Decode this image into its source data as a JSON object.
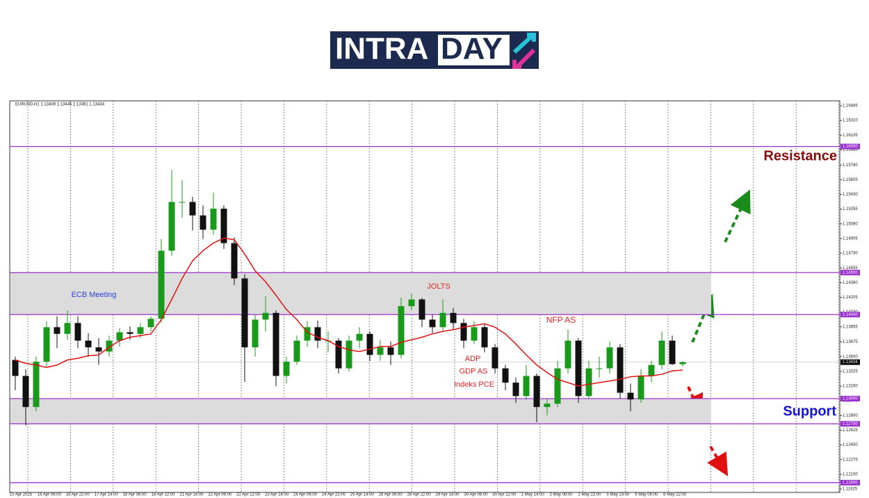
{
  "logo": {
    "part1": "INTRA",
    "part2": "DAY"
  },
  "chart_data": {
    "type": "candlestick",
    "title": "EURUSD,H1  1.13409 1.13445 1.13381 1.13434",
    "ylim": [
      1.11925,
      1.16485
    ],
    "yticks": [
      {
        "value": 1.16485,
        "label": "1.16485"
      },
      {
        "value": 1.1631,
        "label": "1.16310"
      },
      {
        "value": 1.16135,
        "label": "1.16135"
      },
      {
        "value": 1.1596,
        "label": "1.15960"
      },
      {
        "value": 1.1578,
        "label": "1.15780"
      },
      {
        "value": 1.15605,
        "label": "1.15605"
      },
      {
        "value": 1.1543,
        "label": "1.15430"
      },
      {
        "value": 1.15255,
        "label": "1.15255"
      },
      {
        "value": 1.1508,
        "label": "1.15080"
      },
      {
        "value": 1.14905,
        "label": "1.14905"
      },
      {
        "value": 1.1473,
        "label": "1.14730"
      },
      {
        "value": 1.14555,
        "label": "1.14555"
      },
      {
        "value": 1.1438,
        "label": "1.14380"
      },
      {
        "value": 1.14205,
        "label": "1.14205"
      },
      {
        "value": 1.1403,
        "label": "1.14030"
      },
      {
        "value": 1.13855,
        "label": "1.13855"
      },
      {
        "value": 1.13675,
        "label": "1.13675"
      },
      {
        "value": 1.135,
        "label": "1.13500"
      },
      {
        "value": 1.13325,
        "label": "1.13325"
      },
      {
        "value": 1.1315,
        "label": "1.13150"
      },
      {
        "value": 1.12975,
        "label": "1.12975"
      },
      {
        "value": 1.128,
        "label": "1.12800"
      },
      {
        "value": 1.12625,
        "label": "1.12625"
      },
      {
        "value": 1.1245,
        "label": "1.12450"
      },
      {
        "value": 1.12275,
        "label": "1.12275"
      },
      {
        "value": 1.121,
        "label": "1.12100"
      },
      {
        "value": 1.11925,
        "label": "1.11925"
      }
    ],
    "levels": [
      {
        "value": 1.16,
        "label": "1.16000"
      },
      {
        "value": 1.145,
        "label": "1.14500"
      },
      {
        "value": 1.14,
        "label": "1.14000"
      },
      {
        "value": 1.13,
        "label": "1.13000"
      },
      {
        "value": 1.127,
        "label": "1.12700"
      },
      {
        "value": 1.12,
        "label": "1.12000"
      }
    ],
    "level_color": "#9b30d0",
    "current": {
      "value": 1.13434,
      "label": "1.13434"
    },
    "zones": [
      [
        1.14,
        1.145
      ],
      [
        1.127,
        1.13
      ]
    ],
    "x_labels": [
      "15 Apr 2025",
      "16 Apr 06:00",
      "16 Apr 22:00",
      "17 Apr 14:00",
      "18 Apr 06:00",
      "18 Apr 22:00",
      "21 Apr 14:00",
      "22 Apr 06:00",
      "22 Apr 22:00",
      "23 Apr 14:00",
      "24 Apr 06:00",
      "24 Apr 22:00",
      "25 Apr 14:00",
      "28 Apr 06:00",
      "28 Apr 22:00",
      "29 Apr 14:00",
      "30 Apr 06:00",
      "30 Apr 22:00",
      "1 May 14:00",
      "2 May 06:00",
      "2 May 22:00",
      "5 May 14:00",
      "6 May 06:00",
      "6 May 22:00"
    ],
    "up_color": "#1a9a1a",
    "down_color": "#111111",
    "open": [
      1.1346,
      1.1327,
      1.129,
      1.1344,
      1.1385,
      1.1377,
      1.139,
      1.1369,
      1.1361,
      1.1356,
      1.1369,
      1.1379,
      1.1377,
      1.1385,
      1.1395,
      1.1476,
      1.1534,
      1.1534,
      1.1518,
      1.1501,
      1.1526,
      1.1485,
      1.1443,
      1.1361,
      1.1394,
      1.1402,
      1.1327,
      1.1344,
      1.1369,
      1.1385,
      1.1369,
      1.1369,
      1.1336,
      1.1369,
      1.1377,
      1.1352,
      1.1361,
      1.1352,
      1.141,
      1.1418,
      1.1394,
      1.1385,
      1.1402,
      1.139,
      1.1369,
      1.1385,
      1.1361,
      1.1336,
      1.1319,
      1.1303,
      1.1327,
      1.129,
      1.1294,
      1.1336,
      1.1369,
      1.1303,
      1.1336,
      1.1336,
      1.1361,
      1.1307,
      1.1299,
      1.1327,
      1.134,
      1.1369,
      1.13409
    ],
    "high": [
      1.135,
      1.1335,
      1.135,
      1.1392,
      1.1398,
      1.1405,
      1.1398,
      1.1378,
      1.1372,
      1.1375,
      1.1384,
      1.1386,
      1.139,
      1.1398,
      1.149,
      1.1572,
      1.156,
      1.154,
      1.153,
      1.1545,
      1.153,
      1.1492,
      1.1448,
      1.14,
      1.1422,
      1.1405,
      1.135,
      1.1375,
      1.1392,
      1.1393,
      1.138,
      1.1372,
      1.1375,
      1.1385,
      1.138,
      1.137,
      1.1368,
      1.142,
      1.1425,
      1.142,
      1.14,
      1.1418,
      1.1408,
      1.1395,
      1.1392,
      1.1388,
      1.1365,
      1.134,
      1.1325,
      1.134,
      1.133,
      1.13,
      1.1345,
      1.1382,
      1.1372,
      1.1345,
      1.135,
      1.1368,
      1.1365,
      1.1318,
      1.1335,
      1.1345,
      1.138,
      1.1375,
      1.13445
    ],
    "low": [
      1.131,
      1.1268,
      1.1285,
      1.1338,
      1.136,
      1.137,
      1.136,
      1.135,
      1.134,
      1.135,
      1.1362,
      1.137,
      1.1372,
      1.138,
      1.139,
      1.147,
      1.1515,
      1.15,
      1.149,
      1.1495,
      1.1478,
      1.1435,
      1.132,
      1.135,
      1.138,
      1.1315,
      1.1318,
      1.134,
      1.1362,
      1.136,
      1.1355,
      1.133,
      1.1332,
      1.136,
      1.1345,
      1.1345,
      1.134,
      1.1348,
      1.1405,
      1.1385,
      1.1378,
      1.138,
      1.1382,
      1.136,
      1.1365,
      1.1355,
      1.133,
      1.131,
      1.1295,
      1.1298,
      1.1272,
      1.128,
      1.129,
      1.133,
      1.1295,
      1.13,
      1.1325,
      1.133,
      1.13,
      1.1285,
      1.1295,
      1.132,
      1.1335,
      1.134,
      1.13381
    ],
    "close": [
      1.1327,
      1.129,
      1.1344,
      1.1385,
      1.1377,
      1.139,
      1.1369,
      1.1361,
      1.1356,
      1.1369,
      1.1379,
      1.1377,
      1.1385,
      1.1395,
      1.1476,
      1.1534,
      1.1534,
      1.1518,
      1.1501,
      1.1526,
      1.1485,
      1.1443,
      1.1361,
      1.1394,
      1.1402,
      1.1327,
      1.1344,
      1.1369,
      1.1385,
      1.1369,
      1.1369,
      1.1336,
      1.1369,
      1.1377,
      1.1352,
      1.1361,
      1.1352,
      1.141,
      1.1418,
      1.1394,
      1.1385,
      1.1402,
      1.139,
      1.1369,
      1.1385,
      1.1361,
      1.1336,
      1.1319,
      1.1303,
      1.1327,
      1.129,
      1.1294,
      1.1336,
      1.1369,
      1.1303,
      1.1336,
      1.1336,
      1.1361,
      1.1307,
      1.1299,
      1.1327,
      1.134,
      1.1369,
      1.1341,
      1.13434
    ],
    "ma": {
      "color": "#e01010",
      "values": [
        1.1346,
        1.1342,
        1.134,
        1.1337,
        1.134,
        1.1346,
        1.1348,
        1.1351,
        1.1352,
        1.1361,
        1.1369,
        1.1373,
        1.1375,
        1.1377,
        1.1394,
        1.1418,
        1.1443,
        1.1464,
        1.1476,
        1.1485,
        1.1491,
        1.1489,
        1.1472,
        1.1452,
        1.1439,
        1.1423,
        1.1406,
        1.1394,
        1.1379,
        1.1373,
        1.1369,
        1.1362,
        1.1358,
        1.1356,
        1.1359,
        1.1362,
        1.1362,
        1.1367,
        1.137,
        1.1373,
        1.1377,
        1.138,
        1.1382,
        1.1385,
        1.1387,
        1.1389,
        1.1385,
        1.1377,
        1.1365,
        1.1352,
        1.134,
        1.1331,
        1.1323,
        1.1319,
        1.1315,
        1.1317,
        1.1319,
        1.1321,
        1.1323,
        1.1326,
        1.1327,
        1.1327,
        1.1329,
        1.1333,
        1.1334
      ]
    },
    "annotations": [
      {
        "text": "ECB Meeting",
        "color": "#2b3fd6"
      },
      {
        "text": "JOLTS",
        "color": "#e02020"
      },
      {
        "text": "NFP AS",
        "color": "#e02020"
      },
      {
        "text": "ADP",
        "color": "#e02020"
      },
      {
        "text": "GDP AS",
        "color": "#e02020"
      },
      {
        "text": "Indeks PCE",
        "color": "#e02020"
      },
      {
        "text": "Resistance",
        "color": "#8b0a0a"
      },
      {
        "text": "Support",
        "color": "#1414d8"
      }
    ]
  }
}
